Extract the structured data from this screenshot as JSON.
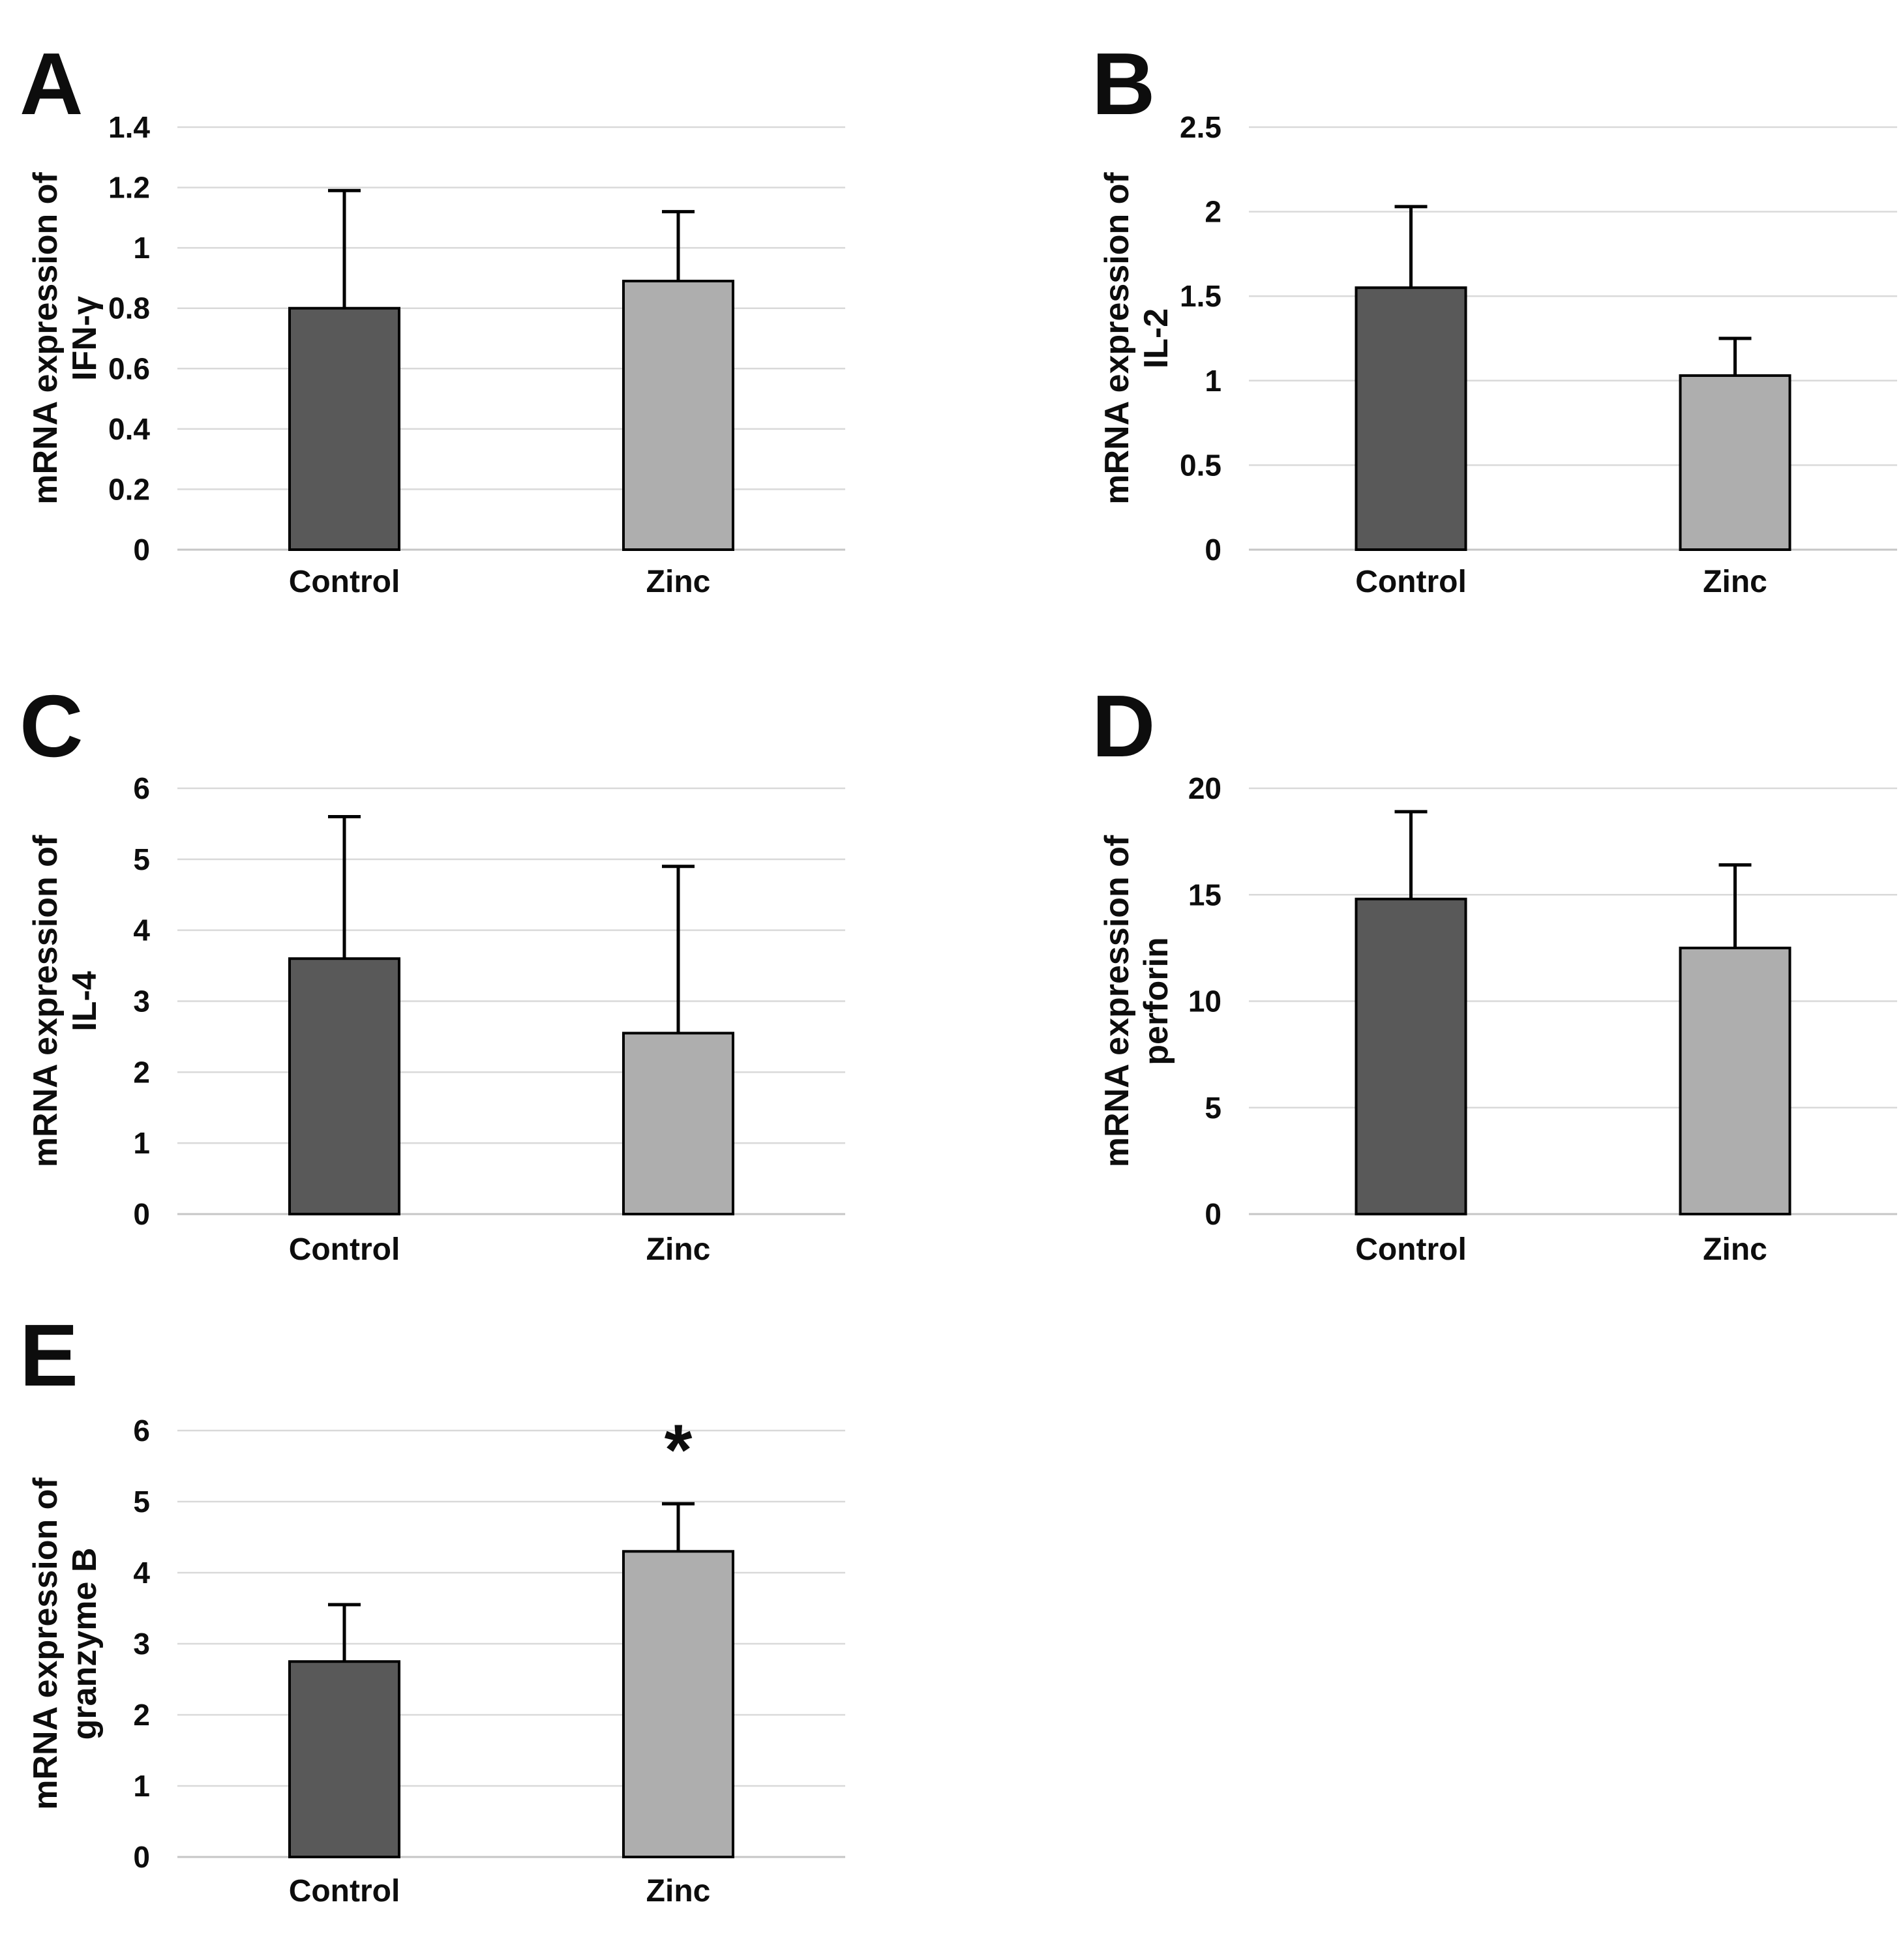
{
  "figure": {
    "background": "#ffffff",
    "bar_colors": [
      "#595959",
      "#aeaeae"
    ],
    "bar_stroke": "#000000",
    "gridline_color": "#d9d9d9",
    "baseline_color": "#c6c6c6",
    "text_color": "#0d0d0d"
  },
  "chart_data": [
    {
      "panel": "A",
      "type": "bar",
      "ylabel_line1": "mRNA expression of",
      "ylabel_line2": "IFN-γ",
      "categories": [
        "Control",
        "Zinc"
      ],
      "values": [
        0.8,
        0.89
      ],
      "errors_plus": [
        0.39,
        0.23
      ],
      "ylim": [
        0,
        1.4
      ],
      "ytick_labels": [
        "0",
        "0.2",
        "0.4",
        "0.6",
        "0.8",
        "1",
        "1.2",
        "1.4"
      ],
      "grid": true,
      "legend": "none",
      "annotations": []
    },
    {
      "panel": "B",
      "type": "bar",
      "ylabel_line1": "mRNA expression of",
      "ylabel_line2": "IL-2",
      "categories": [
        "Control",
        "Zinc"
      ],
      "values": [
        1.55,
        1.03
      ],
      "errors_plus": [
        0.48,
        0.22
      ],
      "ylim": [
        0,
        2.5
      ],
      "ytick_labels": [
        "0",
        "0.5",
        "1",
        "1.5",
        "2",
        "2.5"
      ],
      "grid": true,
      "legend": "none",
      "annotations": []
    },
    {
      "panel": "C",
      "type": "bar",
      "ylabel_line1": "mRNA expression of",
      "ylabel_line2": "IL-4",
      "categories": [
        "Control",
        "Zinc"
      ],
      "values": [
        3.6,
        2.55
      ],
      "errors_plus": [
        2.0,
        2.35
      ],
      "ylim": [
        0,
        6
      ],
      "ytick_labels": [
        "0",
        "1",
        "2",
        "3",
        "4",
        "5",
        "6"
      ],
      "grid": true,
      "legend": "none",
      "annotations": []
    },
    {
      "panel": "D",
      "type": "bar",
      "ylabel_line1": "mRNA expression of",
      "ylabel_line2": "perforin",
      "categories": [
        "Control",
        "Zinc"
      ],
      "values": [
        14.8,
        12.5
      ],
      "errors_plus": [
        4.1,
        3.9
      ],
      "ylim": [
        0,
        20
      ],
      "ytick_labels": [
        "0",
        "5",
        "10",
        "15",
        "20"
      ],
      "grid": true,
      "legend": "none",
      "annotations": []
    },
    {
      "panel": "E",
      "type": "bar",
      "ylabel_line1": "mRNA expression of",
      "ylabel_line2": "granzyme B",
      "categories": [
        "Control",
        "Zinc"
      ],
      "values": [
        2.75,
        4.3
      ],
      "errors_plus": [
        0.8,
        0.67
      ],
      "ylim": [
        0,
        6
      ],
      "ytick_labels": [
        "0",
        "1",
        "2",
        "3",
        "4",
        "5",
        "6"
      ],
      "grid": true,
      "legend": "none",
      "annotations": [
        {
          "category": "Zinc",
          "category_index": 1,
          "text": "*"
        }
      ]
    }
  ]
}
